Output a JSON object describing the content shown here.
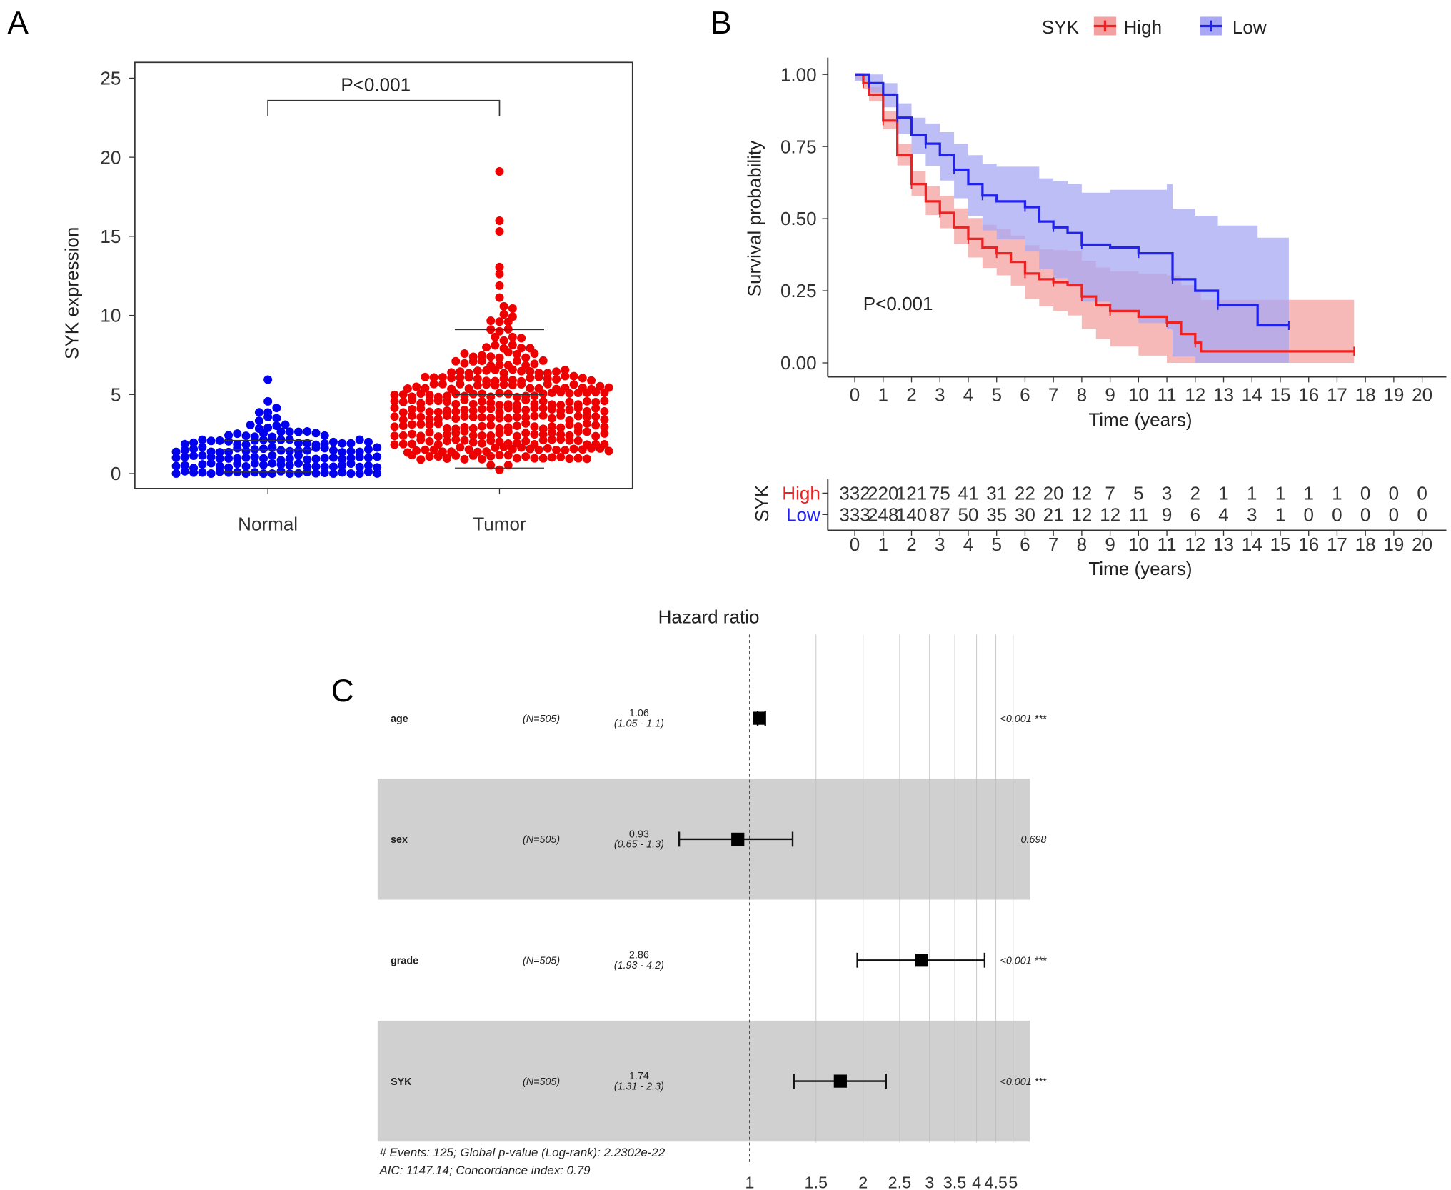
{
  "panels": {
    "a": "A",
    "b": "B",
    "c": "C"
  },
  "chart_data": [
    {
      "type": "scatter",
      "subtype": "beeswarm",
      "ylabel": "SYK expression",
      "xlabel": "",
      "categories": [
        "Normal",
        "Tumor"
      ],
      "yticks": [
        0,
        5,
        10,
        15,
        20,
        25
      ],
      "ylim": [
        0,
        25
      ],
      "colors": {
        "Normal": "#0000ee",
        "Tumor": "#ee0000"
      },
      "annotation": "P<0.001",
      "summary": {
        "Normal": {
          "min": 0.0,
          "max": 5.8,
          "bulk_range": [
            0,
            2.5
          ],
          "whisker_lines": [
            0.1,
            1.5,
            2.1
          ]
        },
        "Tumor": {
          "min": 0.3,
          "max": 19.0,
          "bulk_range": [
            1,
            7
          ],
          "whisker_lines": [
            0.35,
            5.0,
            9.1
          ],
          "outliers": [
            12.5,
            13.0,
            15.2,
            16.0,
            19.0
          ]
        }
      }
    },
    {
      "type": "line",
      "subtype": "kaplan-meier",
      "legend_title": "SYK",
      "legend_position": "top",
      "xlabel": "Time (years)",
      "ylabel": "Survival probability",
      "xticks": [
        0,
        1,
        2,
        3,
        4,
        5,
        6,
        7,
        8,
        9,
        10,
        11,
        12,
        13,
        14,
        15,
        16,
        17,
        18,
        19,
        20
      ],
      "yticks": [
        "0.00",
        "0.25",
        "0.50",
        "0.75",
        "1.00"
      ],
      "xlim": [
        0,
        20
      ],
      "ylim": [
        0,
        1
      ],
      "annotation": "P<0.001",
      "series": [
        {
          "name": "High",
          "color": "#ee2222",
          "band": "#f4a0a0",
          "points": [
            [
              0,
              1
            ],
            [
              0.3,
              0.97
            ],
            [
              0.5,
              0.93
            ],
            [
              1,
              0.84
            ],
            [
              1.5,
              0.72
            ],
            [
              2,
              0.62
            ],
            [
              2.5,
              0.56
            ],
            [
              3,
              0.52
            ],
            [
              3.5,
              0.47
            ],
            [
              4,
              0.43
            ],
            [
              4.5,
              0.4
            ],
            [
              5,
              0.38
            ],
            [
              5.5,
              0.35
            ],
            [
              6,
              0.31
            ],
            [
              6.5,
              0.29
            ],
            [
              7,
              0.28
            ],
            [
              7.5,
              0.27
            ],
            [
              8,
              0.23
            ],
            [
              8.5,
              0.2
            ],
            [
              9,
              0.18
            ],
            [
              10,
              0.16
            ],
            [
              11,
              0.14
            ],
            [
              11.5,
              0.1
            ],
            [
              12,
              0.07
            ],
            [
              12.2,
              0.04
            ],
            [
              17.6,
              0.04
            ]
          ]
        },
        {
          "name": "Low",
          "color": "#2222ee",
          "band": "#a8a8f4",
          "points": [
            [
              0,
              1
            ],
            [
              0.5,
              0.97
            ],
            [
              1,
              0.93
            ],
            [
              1.5,
              0.85
            ],
            [
              2,
              0.79
            ],
            [
              2.5,
              0.76
            ],
            [
              3,
              0.72
            ],
            [
              3.5,
              0.67
            ],
            [
              4,
              0.62
            ],
            [
              4.5,
              0.58
            ],
            [
              5,
              0.56
            ],
            [
              6,
              0.54
            ],
            [
              6.5,
              0.49
            ],
            [
              7,
              0.47
            ],
            [
              7.5,
              0.45
            ],
            [
              8,
              0.41
            ],
            [
              9,
              0.4
            ],
            [
              10,
              0.38
            ],
            [
              11,
              0.38
            ],
            [
              11.2,
              0.29
            ],
            [
              12,
              0.25
            ],
            [
              12.8,
              0.2
            ],
            [
              14.2,
              0.13
            ],
            [
              15.3,
              0.13
            ]
          ]
        }
      ]
    },
    {
      "type": "table",
      "subtype": "number-at-risk",
      "title": "SYK",
      "xlabel": "Time (years)",
      "times": [
        0,
        1,
        2,
        3,
        4,
        5,
        6,
        7,
        8,
        9,
        10,
        11,
        12,
        13,
        14,
        15,
        16,
        17,
        18,
        19,
        20
      ],
      "rows": [
        {
          "name": "High",
          "color": "#ee2222",
          "values": [
            332,
            220,
            121,
            75,
            41,
            31,
            22,
            20,
            12,
            7,
            5,
            3,
            2,
            1,
            1,
            1,
            1,
            1,
            0,
            0,
            0
          ]
        },
        {
          "name": "Low",
          "color": "#2222ee",
          "values": [
            333,
            248,
            140,
            87,
            50,
            35,
            30,
            21,
            12,
            12,
            11,
            9,
            6,
            4,
            3,
            1,
            0,
            0,
            0,
            0,
            0
          ]
        }
      ]
    },
    {
      "type": "forest",
      "title": "Hazard ratio",
      "xscale": "log",
      "xticks": [
        "1",
        "1.5",
        "2",
        "2.5",
        "3",
        "3.5",
        "4",
        "4.5",
        "5"
      ],
      "rows": [
        {
          "var": "age",
          "n": "(N=505)",
          "hr": "1.06",
          "ci": "(1.05 - 1.1)",
          "hr_val": 1.06,
          "lo": 1.05,
          "hi": 1.1,
          "p": "<0.001 ***",
          "shaded": false
        },
        {
          "var": "sex",
          "n": "(N=505)",
          "hr": "0.93",
          "ci": "(0.65 - 1.3)",
          "hr_val": 0.93,
          "lo": 0.65,
          "hi": 1.3,
          "p": "0.698",
          "shaded": true
        },
        {
          "var": "grade",
          "n": "(N=505)",
          "hr": "2.86",
          "ci": "(1.93 - 4.2)",
          "hr_val": 2.86,
          "lo": 1.93,
          "hi": 4.2,
          "p": "<0.001 ***",
          "shaded": false
        },
        {
          "var": "SYK",
          "n": "(N=505)",
          "hr": "1.74",
          "ci": "(1.31 - 2.3)",
          "hr_val": 1.74,
          "lo": 1.31,
          "hi": 2.3,
          "p": "<0.001 ***",
          "shaded": true
        }
      ],
      "footer": [
        "# Events: 125; Global p-value (Log-rank): 2.2302e-22",
        "AIC: 1147.14; Concordance index: 0.79"
      ]
    }
  ]
}
